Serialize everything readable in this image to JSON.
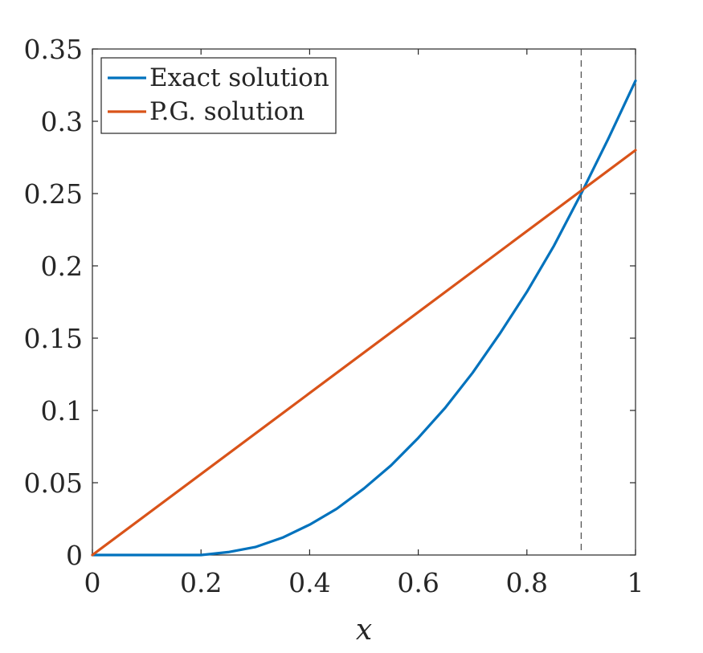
{
  "chart_data": {
    "type": "line",
    "title": "",
    "xlabel": "x",
    "ylabel": "",
    "xlim": [
      0,
      1
    ],
    "ylim": [
      0,
      0.35
    ],
    "x_ticks": [
      0,
      0.2,
      0.4,
      0.6,
      0.8,
      1
    ],
    "x_tick_labels": [
      "0",
      "0.2",
      "0.4",
      "0.6",
      "0.8",
      "1"
    ],
    "y_ticks": [
      0,
      0.05,
      0.1,
      0.15,
      0.2,
      0.25,
      0.3,
      0.35
    ],
    "y_tick_labels": [
      "0",
      "0.05",
      "0.1",
      "0.15",
      "0.2",
      "0.25",
      "0.3",
      "0.35"
    ],
    "grid": false,
    "legend_position": "top-left",
    "reference_line": {
      "orientation": "vertical",
      "x": 0.9,
      "style": "dashed",
      "color": "#555555"
    },
    "series": [
      {
        "name": "Exact solution",
        "color": "#0072BD",
        "x": [
          0,
          0.1,
          0.2,
          0.25,
          0.3,
          0.35,
          0.4,
          0.45,
          0.5,
          0.55,
          0.6,
          0.65,
          0.7,
          0.75,
          0.8,
          0.85,
          0.9,
          0.95,
          1
        ],
        "y": [
          0,
          0,
          0,
          0.002,
          0.0055,
          0.012,
          0.021,
          0.032,
          0.046,
          0.062,
          0.081,
          0.102,
          0.126,
          0.153,
          0.182,
          0.214,
          0.25,
          0.288,
          0.328
        ]
      },
      {
        "name": "P.G. solution",
        "color": "#D95319",
        "x": [
          0,
          1
        ],
        "y": [
          0,
          0.28
        ]
      }
    ]
  }
}
